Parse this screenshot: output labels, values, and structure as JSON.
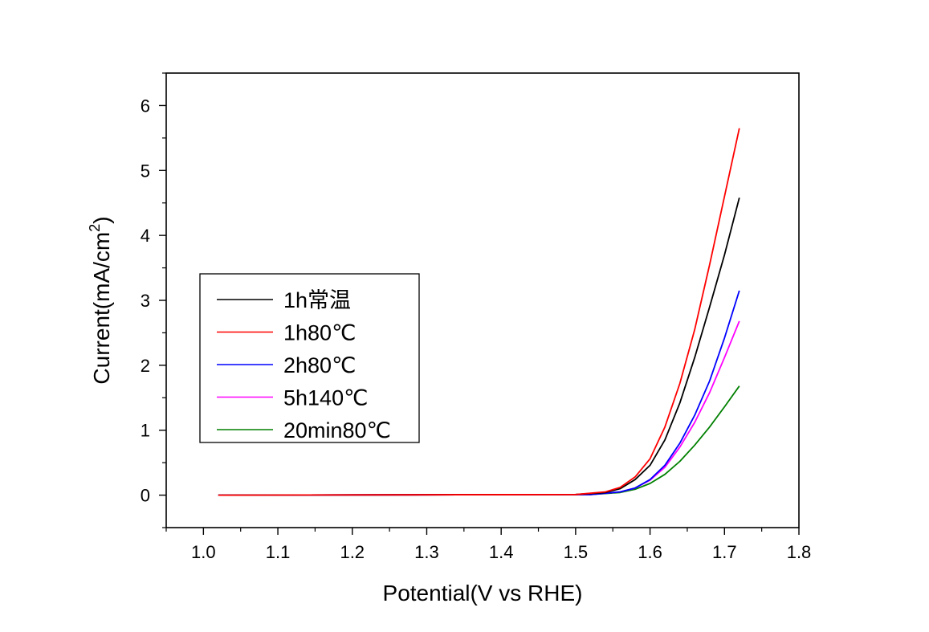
{
  "chart_data": {
    "type": "line",
    "xlabel": "Potential(V vs RHE)",
    "ylabel": "Current(mA/cm",
    "ylabel_superscript": "2",
    "ylabel_suffix": ")",
    "xlim": [
      0.95,
      1.8
    ],
    "ylim": [
      -0.5,
      6.5
    ],
    "xticks": [
      1.0,
      1.1,
      1.2,
      1.3,
      1.4,
      1.5,
      1.6,
      1.7,
      1.8
    ],
    "xtick_labels": [
      "1.0",
      "1.1",
      "1.2",
      "1.3",
      "1.4",
      "1.5",
      "1.6",
      "1.7",
      "1.8"
    ],
    "yticks": [
      0,
      1,
      2,
      3,
      4,
      5,
      6
    ],
    "ytick_labels": [
      "0",
      "1",
      "2",
      "3",
      "4",
      "5",
      "6"
    ],
    "grid": false,
    "legend_position": "middle-left",
    "series": [
      {
        "name": "1h常温",
        "color": "#000000",
        "x": [
          1.02,
          1.5,
          1.54,
          1.56,
          1.58,
          1.6,
          1.62,
          1.64,
          1.66,
          1.68,
          1.7,
          1.72
        ],
        "y": [
          0,
          0.01,
          0.04,
          0.1,
          0.24,
          0.46,
          0.85,
          1.42,
          2.12,
          2.9,
          3.7,
          4.58
        ]
      },
      {
        "name": "1h80℃",
        "color": "#ff0000",
        "x": [
          1.02,
          1.5,
          1.54,
          1.56,
          1.58,
          1.6,
          1.62,
          1.64,
          1.66,
          1.68,
          1.7,
          1.72
        ],
        "y": [
          0,
          0.01,
          0.05,
          0.12,
          0.28,
          0.56,
          1.05,
          1.72,
          2.55,
          3.55,
          4.6,
          5.65
        ]
      },
      {
        "name": "2h80℃",
        "color": "#0000ff",
        "x": [
          1.02,
          1.52,
          1.56,
          1.58,
          1.6,
          1.62,
          1.64,
          1.66,
          1.68,
          1.7,
          1.72
        ],
        "y": [
          0,
          0.01,
          0.05,
          0.11,
          0.24,
          0.46,
          0.8,
          1.23,
          1.76,
          2.42,
          3.15
        ]
      },
      {
        "name": "5h140℃",
        "color": "#ff00ff",
        "x": [
          1.02,
          1.52,
          1.56,
          1.58,
          1.6,
          1.62,
          1.64,
          1.66,
          1.68,
          1.7,
          1.72
        ],
        "y": [
          0,
          0.01,
          0.05,
          0.11,
          0.23,
          0.43,
          0.74,
          1.12,
          1.58,
          2.12,
          2.68
        ]
      },
      {
        "name": "20min80℃",
        "color": "#008000",
        "x": [
          1.02,
          1.52,
          1.56,
          1.58,
          1.6,
          1.62,
          1.64,
          1.66,
          1.68,
          1.7,
          1.72
        ],
        "y": [
          0,
          0.01,
          0.04,
          0.09,
          0.18,
          0.32,
          0.52,
          0.77,
          1.05,
          1.36,
          1.68
        ]
      }
    ]
  }
}
